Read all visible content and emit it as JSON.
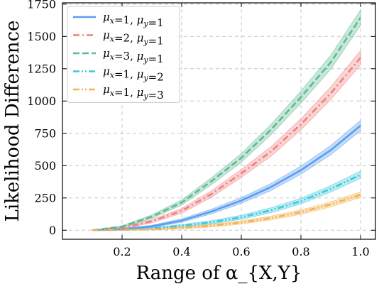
{
  "chart_data": {
    "type": "line",
    "title": "",
    "xlabel": "Range of α_{X,Y}",
    "ylabel": "Likelihood Difference",
    "xlim": [
      0.0,
      1.05
    ],
    "ylim": [
      -70,
      1760
    ],
    "xticks": [
      0.2,
      0.4,
      0.6,
      0.8,
      1.0
    ],
    "xtick_labels": [
      "0.2",
      "0.4",
      "0.6",
      "0.8",
      "1.0"
    ],
    "yticks": [
      0,
      250,
      500,
      750,
      1000,
      1250,
      1500,
      1750
    ],
    "ytick_labels": [
      "0",
      "250",
      "500",
      "750",
      "1000",
      "1250",
      "1500",
      "1750"
    ],
    "grid": true,
    "legend_position": "top-left",
    "x": [
      0.1,
      0.2,
      0.3,
      0.4,
      0.5,
      0.6,
      0.7,
      0.8,
      0.9,
      1.0
    ],
    "series": [
      {
        "label": {
          "mx": "1",
          "my": "1"
        },
        "color": "#5a9ef0",
        "dash": "solid",
        "values": [
          0,
          8,
          30,
          75,
          145,
          230,
          335,
          465,
          620,
          810
        ],
        "band": 40
      },
      {
        "label": {
          "mx": "2",
          "my": "1"
        },
        "color": "#f08080",
        "dash": "dashdot",
        "values": [
          0,
          16,
          70,
          150,
          280,
          440,
          610,
          820,
          1060,
          1335
        ],
        "band": 55
      },
      {
        "label": {
          "mx": "3",
          "my": "1"
        },
        "color": "#5fba93",
        "dash": "dashed",
        "values": [
          0,
          28,
          105,
          215,
          380,
          560,
          780,
          1030,
          1300,
          1645
        ],
        "band": 60
      },
      {
        "label": {
          "mx": "1",
          "my": "2"
        },
        "color": "#3cc8dc",
        "dash": "dashdotdot",
        "values": [
          0,
          4,
          14,
          35,
          62,
          100,
          155,
          225,
          320,
          430
        ],
        "band": 28
      },
      {
        "label": {
          "mx": "1",
          "my": "3"
        },
        "color": "#f4b350",
        "dash": "dashdotdot",
        "values": [
          0,
          2,
          7,
          18,
          36,
          60,
          95,
          140,
          200,
          275
        ],
        "band": 22
      }
    ]
  }
}
